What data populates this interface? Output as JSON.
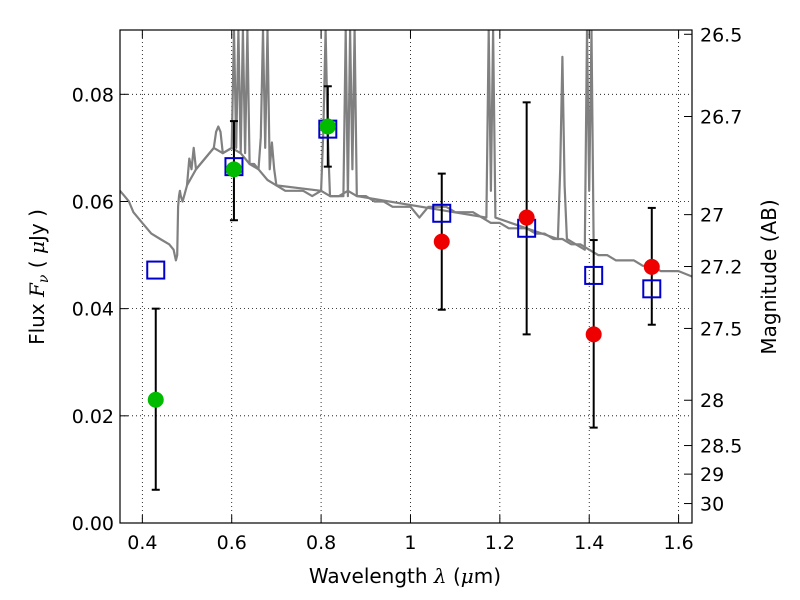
{
  "chart_data": {
    "type": "scatter",
    "title": "",
    "xlabel": "Wavelength  λ (μm)",
    "ylabel": "Flux  Fν  ( μJy )",
    "y2label": "Magnitude (AB)",
    "xlim": [
      0.35,
      1.63
    ],
    "ylim": [
      0.0,
      0.092
    ],
    "grid": true,
    "x_ticks": [
      {
        "value": 0.4,
        "label": "0.4"
      },
      {
        "value": 0.6,
        "label": "0.6"
      },
      {
        "value": 0.8,
        "label": "0.8"
      },
      {
        "value": 1.0,
        "label": "1"
      },
      {
        "value": 1.2,
        "label": "1.2"
      },
      {
        "value": 1.4,
        "label": "1.4"
      },
      {
        "value": 1.6,
        "label": "1.6"
      }
    ],
    "y_ticks": [
      {
        "value": 0.0,
        "label": "0.00"
      },
      {
        "value": 0.02,
        "label": "0.02"
      },
      {
        "value": 0.04,
        "label": "0.04"
      },
      {
        "value": 0.06,
        "label": "0.06"
      },
      {
        "value": 0.08,
        "label": "0.08"
      }
    ],
    "y2_ticks": [
      {
        "value": 26.5,
        "label": "26.5"
      },
      {
        "value": 26.7,
        "label": "26.7"
      },
      {
        "value": 27.0,
        "label": "27"
      },
      {
        "value": 27.2,
        "label": "27.2"
      },
      {
        "value": 27.5,
        "label": "27.5"
      },
      {
        "value": 28.0,
        "label": "28"
      },
      {
        "value": 28.5,
        "label": "28.5"
      },
      {
        "value": 29.0,
        "label": "29"
      },
      {
        "value": 30.0,
        "label": "30"
      }
    ],
    "series": [
      {
        "kind": "line",
        "color": "#808080",
        "x": [
          0.35,
          0.36,
          0.37,
          0.38,
          0.4,
          0.42,
          0.44,
          0.46,
          0.47,
          0.475,
          0.478,
          0.48,
          0.482,
          0.484,
          0.486,
          0.49,
          0.5,
          0.52,
          0.54,
          0.56,
          0.58,
          0.6,
          0.62,
          0.64,
          0.65,
          0.66,
          0.68,
          0.7,
          0.72,
          0.74,
          0.76,
          0.78,
          0.8,
          0.82,
          0.84,
          0.86,
          0.88,
          0.9,
          0.92,
          0.94,
          0.96,
          0.98,
          1.0,
          1.02,
          1.04,
          1.06,
          1.08,
          1.1,
          1.12,
          1.14,
          1.16,
          1.18,
          1.2,
          1.22,
          1.24,
          1.26,
          1.28,
          1.3,
          1.32,
          1.34,
          1.36,
          1.38,
          1.4,
          1.42,
          1.44,
          1.46,
          1.48,
          1.5,
          1.52,
          1.54,
          1.56,
          1.58,
          1.6,
          1.63
        ],
        "y": [
          0.062,
          0.061,
          0.06,
          0.058,
          0.056,
          0.054,
          0.053,
          0.052,
          0.051,
          0.049,
          0.05,
          0.059,
          0.061,
          0.062,
          0.061,
          0.06,
          0.063,
          0.066,
          0.068,
          0.07,
          0.069,
          0.07,
          0.069,
          0.067,
          0.067,
          0.066,
          0.064,
          0.063,
          0.062,
          0.062,
          0.062,
          0.061,
          0.062,
          0.061,
          0.061,
          0.062,
          0.061,
          0.061,
          0.06,
          0.06,
          0.059,
          0.059,
          0.059,
          0.057,
          0.059,
          0.059,
          0.059,
          0.058,
          0.058,
          0.058,
          0.057,
          0.056,
          0.056,
          0.055,
          0.055,
          0.055,
          0.054,
          0.054,
          0.053,
          0.053,
          0.052,
          0.052,
          0.051,
          0.05,
          0.05,
          0.049,
          0.049,
          0.049,
          0.048,
          0.048,
          0.047,
          0.047,
          0.047,
          0.046
        ]
      },
      {
        "kind": "line",
        "color": "#808080",
        "x": [
          0.5,
          0.505,
          0.51,
          0.515,
          0.52,
          0.56,
          0.565,
          0.57,
          0.575,
          0.58,
          0.6,
          0.605,
          0.61,
          0.615,
          0.62,
          0.625,
          0.63,
          0.635,
          0.64,
          0.66,
          0.665,
          0.67,
          0.675,
          0.68,
          0.685,
          0.69,
          0.695,
          0.7,
          0.8,
          0.805,
          0.81,
          0.815,
          0.82,
          0.85,
          0.855,
          0.86,
          0.865,
          0.87,
          0.875,
          0.88,
          1.17,
          1.175,
          1.18,
          1.185,
          1.19,
          1.33,
          1.335,
          1.34,
          1.345,
          1.35,
          1.39,
          1.395,
          1.4,
          1.405,
          1.41
        ],
        "y": [
          0.063,
          0.068,
          0.066,
          0.07,
          0.066,
          0.07,
          0.073,
          0.074,
          0.073,
          0.069,
          0.07,
          0.092,
          0.07,
          0.092,
          0.069,
          0.092,
          0.069,
          0.092,
          0.067,
          0.066,
          0.072,
          0.092,
          0.07,
          0.092,
          0.066,
          0.071,
          0.066,
          0.063,
          0.062,
          0.073,
          0.092,
          0.072,
          0.061,
          0.061,
          0.092,
          0.061,
          0.092,
          0.066,
          0.092,
          0.061,
          0.057,
          0.092,
          0.062,
          0.092,
          0.057,
          0.053,
          0.066,
          0.087,
          0.063,
          0.053,
          0.051,
          0.092,
          0.062,
          0.092,
          0.051
        ]
      },
      {
        "kind": "squares",
        "color": "#0000cc",
        "x": [
          0.43,
          0.605,
          0.815,
          1.07,
          1.26,
          1.41,
          1.54
        ],
        "y": [
          0.0472,
          0.0665,
          0.0735,
          0.0578,
          0.055,
          0.0462,
          0.0437
        ]
      },
      {
        "kind": "points",
        "color": "#00bb00",
        "x": [
          0.43,
          0.605,
          0.815
        ],
        "y": [
          0.023,
          0.066,
          0.074
        ],
        "yerr_low": [
          0.0062,
          0.0565,
          0.0665
        ],
        "yerr_high": [
          0.04,
          0.075,
          0.0815
        ]
      },
      {
        "kind": "points",
        "color": "#ee0000",
        "x": [
          1.07,
          1.26,
          1.41,
          1.54
        ],
        "y": [
          0.0525,
          0.057,
          0.0352,
          0.0478
        ],
        "yerr_low": [
          0.0398,
          0.0352,
          0.0178,
          0.037
        ],
        "yerr_high": [
          0.0652,
          0.0785,
          0.0528,
          0.0588
        ]
      }
    ]
  }
}
